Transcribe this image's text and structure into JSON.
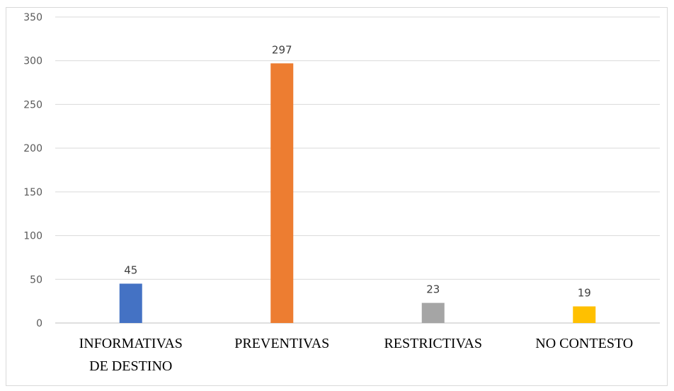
{
  "chart_data": {
    "type": "bar",
    "categories": [
      [
        "INFORMATIVAS",
        "DE DESTINO"
      ],
      [
        "PREVENTIVAS"
      ],
      [
        "RESTRICTIVAS"
      ],
      [
        "NO CONTESTO"
      ]
    ],
    "values": [
      45,
      297,
      23,
      19
    ],
    "value_labels": [
      "45",
      "297",
      "23",
      "19"
    ],
    "colors": [
      "#4472c4",
      "#ed7d31",
      "#a5a5a5",
      "#ffc000"
    ],
    "yticks": [
      "0",
      "50",
      "100",
      "150",
      "200",
      "250",
      "300",
      "350"
    ],
    "ylim": [
      0,
      350
    ],
    "title": "",
    "xlabel": "",
    "ylabel": "",
    "grid": true,
    "legend": "none"
  }
}
